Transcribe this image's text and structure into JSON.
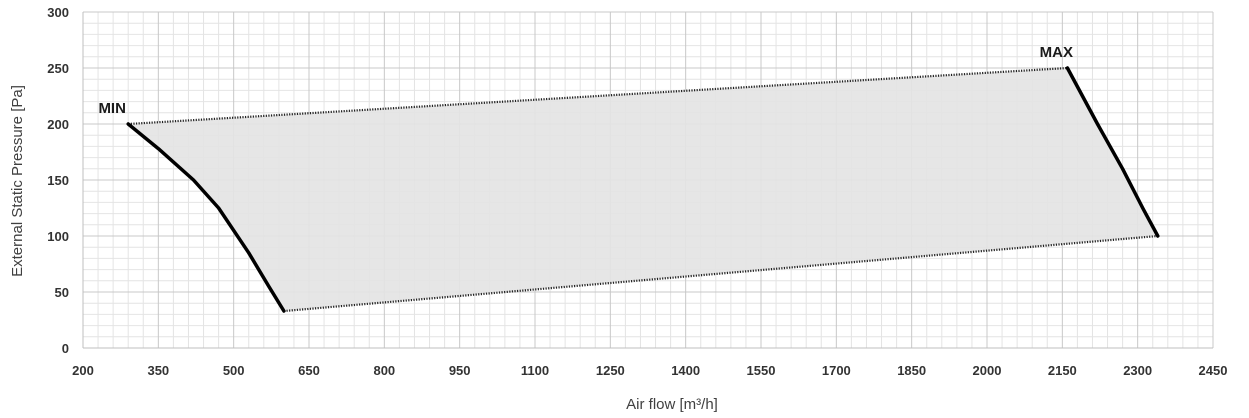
{
  "chart_data": {
    "type": "area",
    "title": "",
    "xlabel": "Air flow [m³/h]",
    "ylabel": "External Static Pressure [Pa]",
    "xlim": [
      200,
      2450
    ],
    "ylim": [
      0,
      300
    ],
    "x_ticks": [
      200,
      350,
      500,
      650,
      800,
      950,
      1100,
      1250,
      1400,
      1550,
      1700,
      1850,
      2000,
      2150,
      2300,
      2450
    ],
    "y_ticks": [
      0,
      50,
      100,
      150,
      200,
      250,
      300
    ],
    "x_tick_labels": [
      "200",
      "350",
      "500",
      "650",
      "800",
      "950",
      "1100",
      "1250",
      "1400",
      "1550",
      "1700",
      "1850",
      "2000",
      "2150",
      "2300",
      "2450"
    ],
    "y_tick_labels": [
      "0",
      "50",
      "100",
      "150",
      "200",
      "250",
      "300"
    ],
    "grid": true,
    "minor_grid": true,
    "legend": "none",
    "colors": {
      "fill": "#e3e3e3",
      "curve": "#000000",
      "grid_major": "#c8c8c8",
      "grid_minor": "#e4e4e4"
    },
    "region": {
      "top_edge": [
        [
          290,
          200
        ],
        [
          2160,
          250
        ]
      ],
      "bottom_edge": [
        [
          600,
          33
        ],
        [
          2340,
          100
        ]
      ]
    },
    "min_curve": [
      [
        290,
        200
      ],
      [
        350,
        178
      ],
      [
        420,
        150
      ],
      [
        470,
        125
      ],
      [
        530,
        85
      ],
      [
        570,
        55
      ],
      [
        600,
        33
      ]
    ],
    "max_curve": [
      [
        2160,
        250
      ],
      [
        2220,
        200
      ],
      [
        2270,
        160
      ],
      [
        2310,
        125
      ],
      [
        2340,
        100
      ]
    ],
    "annotations": [
      {
        "text": "MIN",
        "x": 290,
        "y": 200
      },
      {
        "text": "MAX",
        "x": 2160,
        "y": 250
      }
    ]
  }
}
